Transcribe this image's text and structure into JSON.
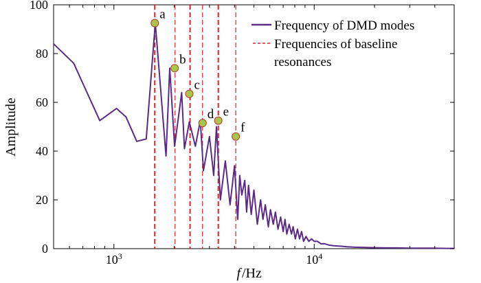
{
  "chart_data": {
    "type": "line",
    "xscale": "log",
    "xlim": [
      500,
      50000
    ],
    "ylim": [
      0,
      100
    ],
    "ylabel": "Amplitude",
    "xlabel_italic": "f",
    "xlabel_unit": "/Hz",
    "y_ticks": [
      0,
      20,
      40,
      60,
      80,
      100
    ],
    "y_tick_labels": [
      "0",
      "20",
      "40",
      "60",
      "80",
      "100"
    ],
    "x_ticks": [
      1000,
      10000
    ],
    "x_tick_labels": [
      {
        "base": "10",
        "exp": "3"
      },
      {
        "base": "10",
        "exp": "4"
      }
    ],
    "series": [
      {
        "name": "Frequency of DMD modes",
        "color": "#5b2a86",
        "x": [
          500,
          630,
          850,
          1030,
          1150,
          1300,
          1450,
          1610,
          1820,
          1900,
          2010,
          2180,
          2250,
          2380,
          2550,
          2700,
          2800,
          3000,
          3150,
          3250,
          3400,
          3600,
          3800,
          4000,
          4150,
          4250,
          4350,
          4500,
          4600,
          4700,
          4850,
          5000,
          5200,
          5400,
          5550,
          5700,
          5900,
          6050,
          6250,
          6400,
          6600,
          6800,
          7000,
          7150,
          7300,
          7500,
          7700,
          7850,
          8050,
          8250,
          8450,
          8650,
          8850,
          9100,
          9400,
          9700,
          10000,
          10400,
          10800,
          11300,
          11800,
          12500,
          13500,
          14500,
          16000,
          18000,
          20000,
          23000,
          26000,
          30000,
          35000,
          40000,
          46000,
          50000
        ],
        "y": [
          84,
          76,
          52.5,
          57.5,
          54,
          44,
          45,
          92.5,
          38,
          74,
          42,
          64,
          41,
          52,
          42,
          52.5,
          32,
          46,
          30,
          50,
          20,
          36,
          18,
          34,
          12,
          30,
          22,
          28,
          15,
          26,
          14,
          24,
          10,
          20,
          12,
          18,
          9,
          16,
          10,
          15,
          8,
          13,
          7,
          12,
          6,
          10,
          6,
          9,
          4,
          8,
          4,
          7,
          3,
          5,
          3,
          4,
          3,
          3,
          2,
          2,
          1.5,
          1.2,
          1,
          0.8,
          0.6,
          0.5,
          0.4,
          0.3,
          0.3,
          0.2,
          0.2,
          0.2,
          0.1,
          0.1
        ]
      },
      {
        "name": "Frequencies of baseline resonances",
        "color": "#d9252a"
      }
    ],
    "resonance_lines": [
      1600,
      2020,
      2400,
      2770,
      3320,
      4060
    ],
    "peaks": [
      {
        "label": "a",
        "x": 1600,
        "y": 92.5
      },
      {
        "label": "b",
        "x": 2010,
        "y": 74
      },
      {
        "label": "c",
        "x": 2380,
        "y": 63.5
      },
      {
        "label": "d",
        "x": 2770,
        "y": 51.5
      },
      {
        "label": "e",
        "x": 3320,
        "y": 52.5
      },
      {
        "label": "f",
        "x": 4060,
        "y": 46
      }
    ],
    "legend": {
      "position": "top-right",
      "entries": [
        "Frequency of DMD modes",
        "Frequencies of baseline",
        "resonances"
      ]
    }
  }
}
